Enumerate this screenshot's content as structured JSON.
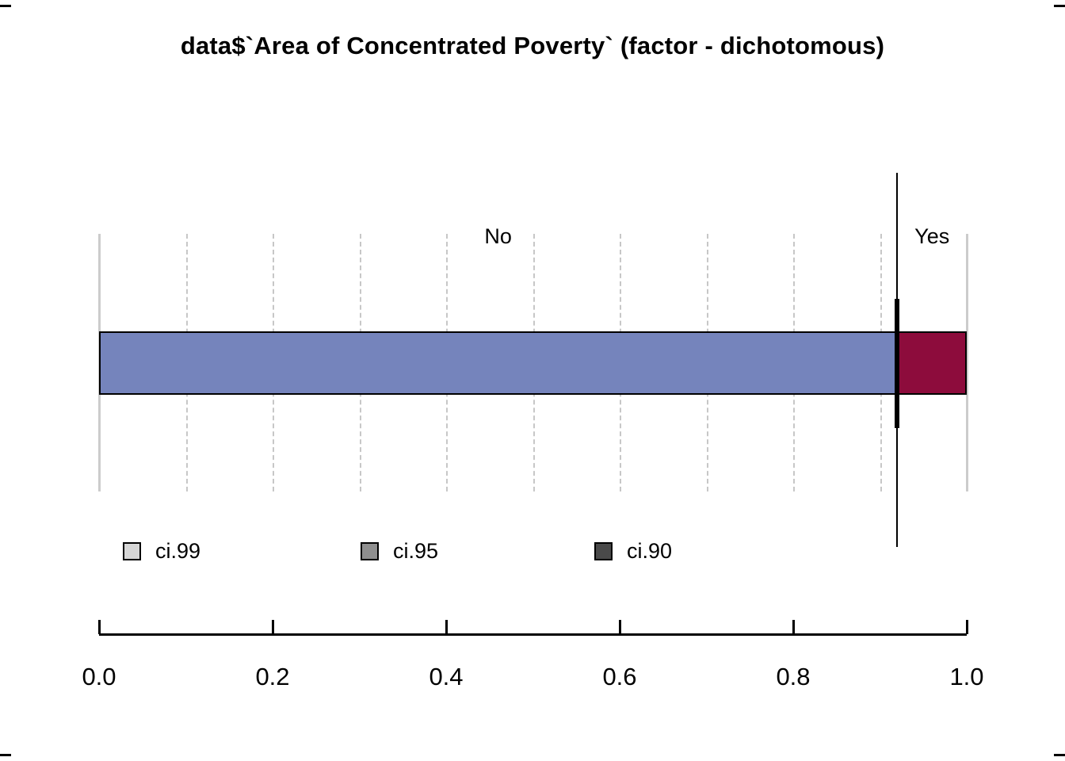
{
  "chart_data": {
    "type": "bar",
    "orientation": "horizontal-stacked",
    "title": "data$`Area of Concentrated Poverty` (factor - dichotomous)",
    "categories": [
      "No",
      "Yes"
    ],
    "values": [
      0.92,
      0.08
    ],
    "segment_colors": [
      "#7584BC",
      "#8D0C3C"
    ],
    "xlim": [
      0,
      1
    ],
    "x_ticks": [
      {
        "value": 0.0,
        "label": "0.0"
      },
      {
        "value": 0.2,
        "label": "0.2"
      },
      {
        "value": 0.4,
        "label": "0.4"
      },
      {
        "value": 0.6,
        "label": "0.6"
      },
      {
        "value": 0.8,
        "label": "0.8"
      },
      {
        "value": 1.0,
        "label": "1.0"
      }
    ],
    "gridline_values": [
      0.1,
      0.2,
      0.3,
      0.4,
      0.5,
      0.6,
      0.7,
      0.8,
      0.9
    ],
    "edge_line_values": [
      0,
      1
    ],
    "grid": true,
    "ci_marker": {
      "x": 0.92
    },
    "legend_position": "bottom-left",
    "legend": [
      {
        "label": "ci.99",
        "color": "#D6D6D6"
      },
      {
        "label": "ci.95",
        "color": "#8F8F8F"
      },
      {
        "label": "ci.90",
        "color": "#4A4A4A"
      }
    ]
  }
}
